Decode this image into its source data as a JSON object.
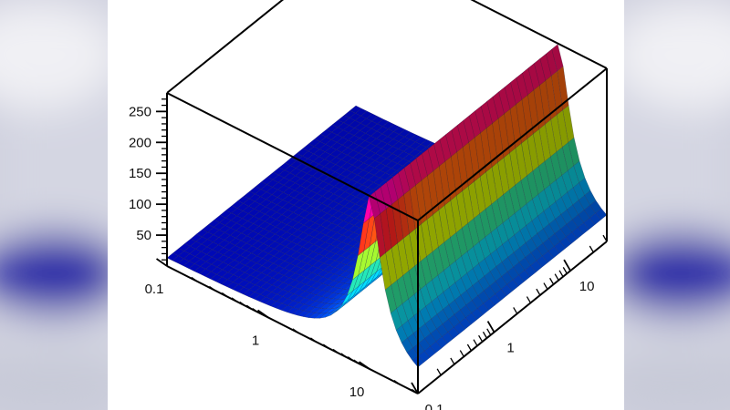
{
  "chart_data": {
    "type": "surface",
    "title": "",
    "xlabel": "",
    "ylabel": "",
    "zlabel": "",
    "x_scale": "log",
    "y_scale": "log",
    "x_ticks": [
      "0.1",
      "1",
      "10"
    ],
    "y_ticks": [
      "0.1",
      "1",
      "10"
    ],
    "z_ticks": [
      50,
      100,
      150,
      200,
      250
    ],
    "xlim": [
      0.1,
      30
    ],
    "ylim": [
      0.1,
      30
    ],
    "zlim": [
      0,
      280
    ],
    "grid": false,
    "legend": "none",
    "ridge": {
      "location_x": 10,
      "peak_z": 280,
      "floor_z": 10
    },
    "colormap": [
      "#0000c8",
      "#0060ff",
      "#00d0ff",
      "#30e090",
      "#d0f000",
      "#ff9000",
      "#ff2020",
      "#ff00a0"
    ]
  }
}
